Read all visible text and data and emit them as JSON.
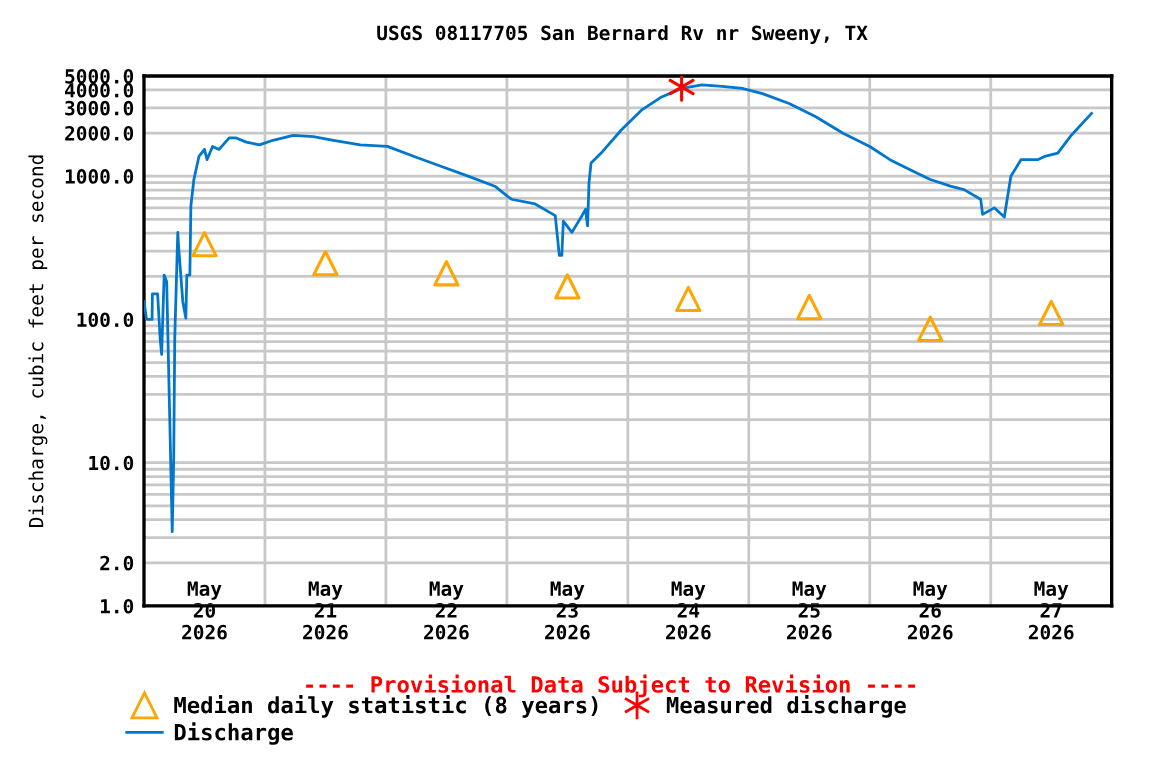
{
  "chart_data": {
    "type": "line",
    "title": "USGS 08117705 San Bernard Rv nr Sweeny, TX",
    "ylabel": "Discharge, cubic feet per second",
    "annotations": [
      "---- Provisional Data Subject to Revision ----"
    ],
    "log": "y",
    "grid": true,
    "legend": "bottom",
    "xlim": [
      "2026-05-20T00:00",
      "2026-05-28T00:00"
    ],
    "xticks": [
      {
        "value": "2026-05-20T12:00",
        "label": "May\n20\n2026"
      },
      {
        "value": "2026-05-21T12:00",
        "label": "May\n21\n2026"
      },
      {
        "value": "2026-05-22T12:00",
        "label": "May\n22\n2026"
      },
      {
        "value": "2026-05-23T12:00",
        "label": "May\n23\n2026"
      },
      {
        "value": "2026-05-24T12:00",
        "label": "May\n24\n2026"
      },
      {
        "value": "2026-05-25T12:00",
        "label": "May\n25\n2026"
      },
      {
        "value": "2026-05-26T12:00",
        "label": "May\n26\n2026"
      },
      {
        "value": "2026-05-27T12:00",
        "label": "May\n27\n2026"
      },
      {
        "value": "2026-05-21T00:00",
        "label": null
      },
      {
        "value": "2026-05-22T00:00",
        "label": null
      },
      {
        "value": "2026-05-23T00:00",
        "label": null
      },
      {
        "value": "2026-05-24T00:00",
        "label": null
      },
      {
        "value": "2026-05-25T00:00",
        "label": null
      },
      {
        "value": "2026-05-26T00:00",
        "label": null
      },
      {
        "value": "2026-05-27T00:00",
        "label": null
      }
    ],
    "ylim": [
      1,
      5000
    ],
    "yticks": [
      {
        "value": 1,
        "label": "1.0"
      },
      {
        "value": 2,
        "label": "2.0"
      },
      {
        "value": 10,
        "label": "10.0"
      },
      {
        "value": 100,
        "label": "100.0"
      },
      {
        "value": 1000,
        "label": "1000.0"
      },
      {
        "value": 2000,
        "label": "2000.0"
      },
      {
        "value": 3000,
        "label": "3000.0"
      },
      {
        "value": 4000,
        "label": "4000.0"
      },
      {
        "value": 5000,
        "label": "5000.0"
      }
    ],
    "series": [
      {
        "name": "Median daily statistic (8 years)",
        "type": "scatter",
        "marker": "triangle",
        "color": "#ffa500",
        "x": [
          "2026-05-20T12:00",
          "2026-05-21T12:00",
          "2026-05-22T12:00",
          "2026-05-23T12:00",
          "2026-05-24T12:00",
          "2026-05-25T12:00",
          "2026-05-26T12:00",
          "2026-05-27T12:00"
        ],
        "values": [
          335,
          247,
          210,
          170,
          139,
          122,
          86,
          111
        ]
      },
      {
        "name": "Measured discharge",
        "type": "scatter",
        "marker": "cross",
        "color": "#ff0000",
        "x": [
          "2026-05-24T10:40"
        ],
        "values": [
          4190
        ]
      },
      {
        "name": "Discharge",
        "marker": "none",
        "color": "#0077cc",
        "x": [
          "2026-05-20T00:00",
          "2026-05-20T00:30",
          "2026-05-20T01:36",
          "2026-05-20T01:40",
          "2026-05-20T02:42",
          "2026-05-20T03:12",
          "2026-05-20T03:30",
          "2026-05-20T04:00",
          "2026-05-20T04:30",
          "2026-05-20T05:06",
          "2026-05-20T05:36",
          "2026-05-20T05:54",
          "2026-05-20T06:06",
          "2026-05-20T06:42",
          "2026-05-20T06:54",
          "2026-05-20T07:42",
          "2026-05-20T08:18",
          "2026-05-20T08:30",
          "2026-05-20T09:06",
          "2026-05-20T09:18",
          "2026-05-20T09:54",
          "2026-05-20T10:54",
          "2026-05-20T12:00",
          "2026-05-20T12:30",
          "2026-05-20T13:36",
          "2026-05-20T14:54",
          "2026-05-20T16:54",
          "2026-05-20T18:18",
          "2026-05-20T20:18",
          "2026-05-20T22:54",
          "2026-05-21T01:36",
          "2026-05-21T05:36",
          "2026-05-21T09:36",
          "2026-05-21T13:36",
          "2026-05-21T18:54",
          "2026-05-22T00:18",
          "2026-05-22T05:36",
          "2026-05-22T10:54",
          "2026-05-22T16:18",
          "2026-05-22T21:36",
          "2026-05-23T00:54",
          "2026-05-23T05:36",
          "2026-05-23T09:36",
          "2026-05-23T10:24",
          "2026-05-23T10:54",
          "2026-05-23T11:12",
          "2026-05-23T12:54",
          "2026-05-23T14:54",
          "2026-05-23T15:36",
          "2026-05-23T16:00",
          "2026-05-23T16:18",
          "2026-05-23T16:42",
          "2026-05-23T18:42",
          "2026-05-23T22:42",
          "2026-05-24T02:42",
          "2026-05-24T06:42",
          "2026-05-24T10:42",
          "2026-05-24T14:42",
          "2026-05-24T18:42",
          "2026-05-24T22:42",
          "2026-05-25T02:42",
          "2026-05-25T08:00",
          "2026-05-25T13:18",
          "2026-05-25T18:42",
          "2026-05-26T00:00",
          "2026-05-26T04:00",
          "2026-05-26T08:00",
          "2026-05-26T12:00",
          "2026-05-26T16:00",
          "2026-05-26T18:42",
          "2026-05-26T22:00",
          "2026-05-26T22:24",
          "2026-05-27T00:42",
          "2026-05-27T02:42",
          "2026-05-27T04:00",
          "2026-05-27T06:00",
          "2026-05-27T09:18",
          "2026-05-27T10:42",
          "2026-05-27T13:18",
          "2026-05-27T16:00",
          "2026-05-27T20:00"
        ],
        "values": [
          133,
          100,
          100,
          151,
          151,
          74,
          57,
          204,
          183,
          21,
          3.3,
          11,
          74,
          405,
          311,
          133,
          102,
          204,
          204,
          621,
          948,
          1373,
          1537,
          1303,
          1613,
          1537,
          1849,
          1849,
          1728,
          1655,
          1780,
          1927,
          1888,
          1780,
          1655,
          1613,
          1373,
          1172,
          1000,
          851,
          690,
          640,
          530,
          280,
          280,
          485,
          405,
          530,
          587,
          450,
          900,
          1236,
          1450,
          2100,
          2890,
          3573,
          4100,
          4330,
          4240,
          4100,
          3770,
          3215,
          2600,
          1995,
          1611,
          1303,
          1110,
          948,
          853,
          806,
          690,
          541,
          601,
          518,
          1000,
          1303,
          1303,
          1373,
          1450,
          1932,
          2742
        ]
      }
    ]
  }
}
